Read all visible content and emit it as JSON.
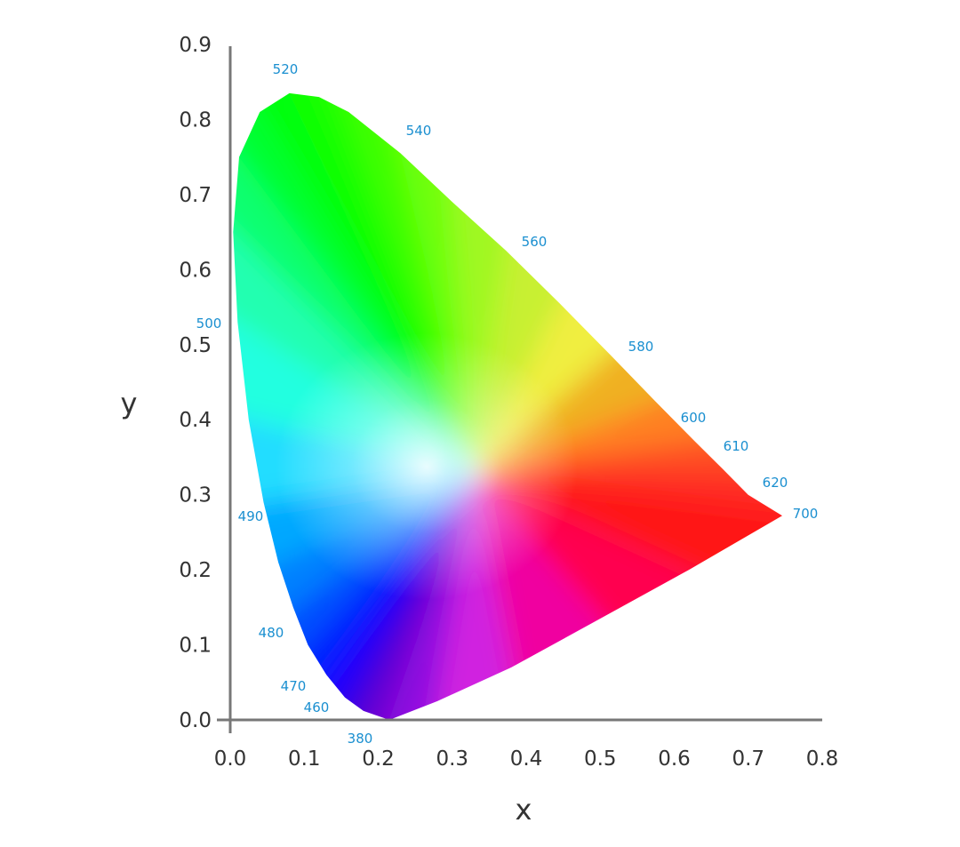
{
  "chart_data": {
    "type": "chromaticity-diagram",
    "xlabel": "x",
    "ylabel": "y",
    "xlim": [
      0.0,
      0.8
    ],
    "ylim": [
      0.0,
      0.9
    ],
    "x_ticks": [
      "0.0",
      "0.1",
      "0.2",
      "0.3",
      "0.4",
      "0.5",
      "0.6",
      "0.7",
      "0.8"
    ],
    "y_ticks": [
      "0.0",
      "0.1",
      "0.2",
      "0.3",
      "0.4",
      "0.5",
      "0.6",
      "0.7",
      "0.8",
      "0.9"
    ],
    "grid": false,
    "wavelength_labels": [
      "520",
      "540",
      "560",
      "580",
      "600",
      "610",
      "620",
      "700",
      "500",
      "490",
      "480",
      "470",
      "460",
      "380"
    ],
    "label_color": "#1a8fd0",
    "axis_color": "#777777",
    "white_point": [
      0.33,
      0.33
    ]
  }
}
